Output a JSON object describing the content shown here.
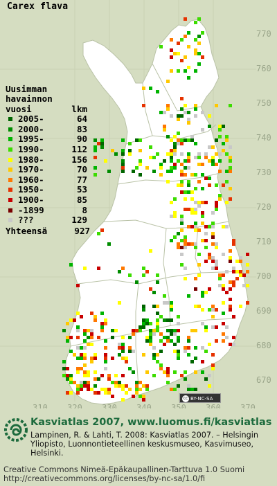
{
  "title": "Carex flava",
  "legend": {
    "heading": [
      "Uusimman",
      "havainnon"
    ],
    "col_year": "vuosi",
    "col_count": "lkm",
    "items": [
      {
        "label": "2005-",
        "count": "64",
        "color": "#006400"
      },
      {
        "label": "2000-",
        "count": "83",
        "color": "#008c00"
      },
      {
        "label": "1995-",
        "count": "90",
        "color": "#00b400"
      },
      {
        "label": "1990-",
        "count": "112",
        "color": "#3cdc00"
      },
      {
        "label": "1980-",
        "count": "156",
        "color": "#ffff00"
      },
      {
        "label": "1970-",
        "count": "70",
        "color": "#ffc800"
      },
      {
        "label": "1960-",
        "count": "77",
        "color": "#ff7800"
      },
      {
        "label": "1950-",
        "count": "53",
        "color": "#e63200"
      },
      {
        "label": "1900-",
        "count": "85",
        "color": "#c80000"
      },
      {
        "label": "-1899",
        "count": "8",
        "color": "#780000"
      },
      {
        "label": "???",
        "count": "129",
        "color": "#c8c8c8"
      }
    ],
    "total_label": "Yhteensä",
    "total_count": "927"
  },
  "axes": {
    "y_ticks": [
      "770",
      "760",
      "750",
      "740",
      "730",
      "720",
      "710",
      "700",
      "690",
      "680",
      "670"
    ],
    "x_ticks": [
      "310",
      "320",
      "330",
      "340",
      "350",
      "360",
      "370"
    ]
  },
  "cc_badge": {
    "text": "BY-NC-SA",
    "cc": "cc"
  },
  "footer": {
    "brand": "Kasviatlas 2007, www.luomus.fi/kasviatlas",
    "citation": "Lampinen, R. & Lahti, T. 2008: Kasviatlas 2007. – Helsingin Yliopisto, Luonnontieteellinen keskusmuseo, Kasvimuseo, Helsinki.",
    "license_line1": "Creative Commons Nimeä-Epäkaupallinen-Tarttuva 1.0 Suomi",
    "license_line2": "http://creativecommons.org/licenses/by-nc-sa/1.0/fi"
  },
  "colors": {
    "land": "#ffffff",
    "sea": "#d5ddc1",
    "border": "#b9c2a6",
    "axis_text": "#9aa58a",
    "brand": "#1d6b3d"
  }
}
